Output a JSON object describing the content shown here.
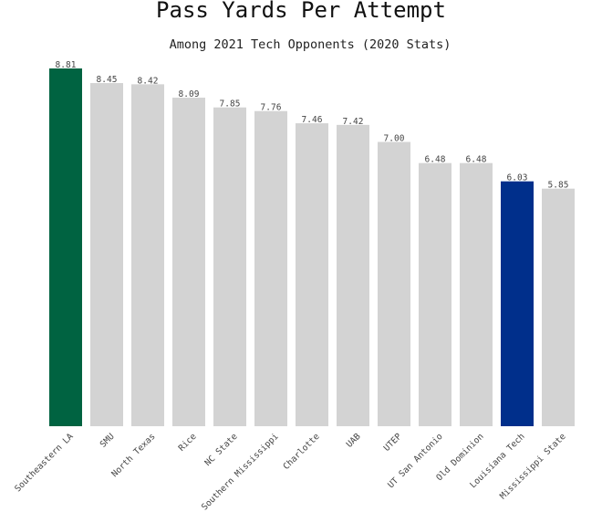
{
  "chart_data": {
    "type": "bar",
    "title": "Pass Yards Per Attempt",
    "subtitle": "Among 2021 Tech Opponents (2020 Stats)",
    "xlabel": "",
    "ylabel": "",
    "ylim": [
      0,
      8.81
    ],
    "grid": false,
    "categories": [
      "Southeastern LA",
      "SMU",
      "North Texas",
      "Rice",
      "NC State",
      "Southern Mississippi",
      "Charlotte",
      "UAB",
      "UTEP",
      "UT San Antonio",
      "Old Dominion",
      "Louisiana Tech",
      "Mississippi State"
    ],
    "values": [
      8.81,
      8.45,
      8.42,
      8.09,
      7.85,
      7.76,
      7.46,
      7.42,
      7.0,
      6.48,
      6.48,
      6.03,
      5.85
    ],
    "value_labels": [
      "8.81",
      "8.45",
      "8.42",
      "8.09",
      "7.85",
      "7.76",
      "7.46",
      "7.42",
      "7.00",
      "6.48",
      "6.48",
      "6.03",
      "5.85"
    ],
    "colors": [
      "#006341",
      "#d3d3d3",
      "#d3d3d3",
      "#d3d3d3",
      "#d3d3d3",
      "#d3d3d3",
      "#d3d3d3",
      "#d3d3d3",
      "#d3d3d3",
      "#d3d3d3",
      "#d3d3d3",
      "#002f8b",
      "#d3d3d3"
    ]
  }
}
